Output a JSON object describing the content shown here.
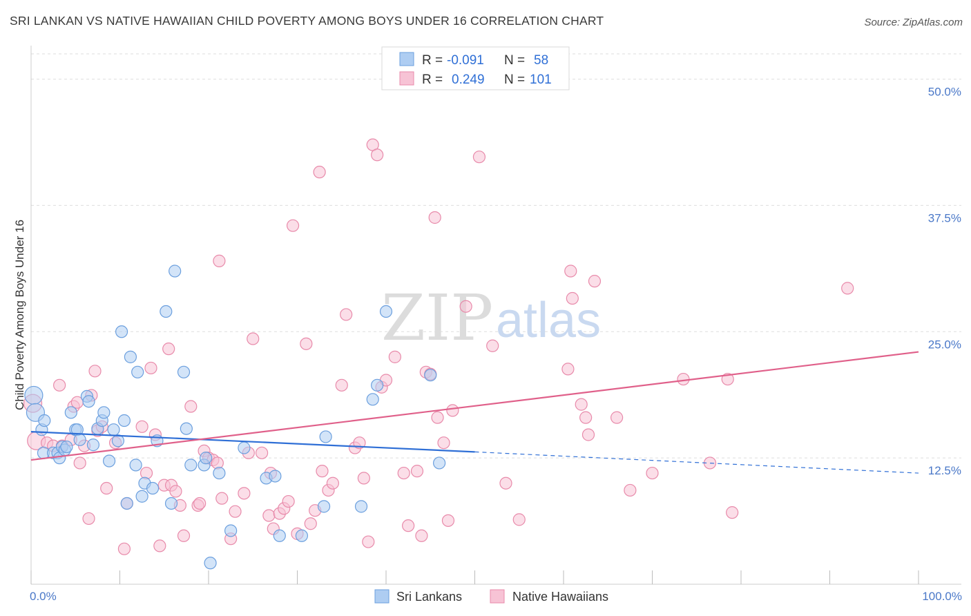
{
  "header": {
    "title": "SRI LANKAN VS NATIVE HAWAIIAN CHILD POVERTY AMONG BOYS UNDER 16 CORRELATION CHART",
    "source": "Source: ZipAtlas.com"
  },
  "watermark": {
    "zip": "ZIP",
    "atlas": "atlas"
  },
  "legend": {
    "rows": [
      {
        "r_label": "R =",
        "r_value": "-0.091",
        "n_label": "N =",
        "n_value": "58"
      },
      {
        "r_label": "R =",
        "r_value": "0.249",
        "n_label": "N =",
        "n_value": "101"
      }
    ]
  },
  "colors": {
    "sri_fill": "#aecdf2",
    "sri_stroke": "#6b9fde",
    "sri_line": "#2f6fd6",
    "haw_fill": "#f7c3d5",
    "haw_stroke": "#e88aaa",
    "haw_line": "#e0608a",
    "grid": "#dddddd",
    "tick_text": "#4a78c8"
  },
  "chart_data": {
    "type": "scatter",
    "title": "SRI LANKAN VS NATIVE HAWAIIAN CHILD POVERTY AMONG BOYS UNDER 16 CORRELATION CHART",
    "xlabel": "",
    "ylabel": "Child Poverty Among Boys Under 16",
    "xlim": [
      0,
      100
    ],
    "ylim": [
      0,
      52.5
    ],
    "x_tick_labels": [
      "0.0%",
      "100.0%"
    ],
    "y_ticks": [
      12.5,
      25.0,
      37.5,
      50.0
    ],
    "y_tick_labels": [
      "12.5%",
      "25.0%",
      "37.5%",
      "50.0%"
    ],
    "grid": true,
    "legend_position": "top-center",
    "series": [
      {
        "name": "Sri Lankans",
        "r": -0.091,
        "n": 58,
        "trend": {
          "x0": 0,
          "y0": 15.1,
          "x1": 50,
          "y1": 13.1,
          "dashed_to_x": 100,
          "dashed_to_y": 11.0
        },
        "points": [
          [
            0.3,
            18.7
          ],
          [
            0.5,
            17.0
          ],
          [
            1.2,
            15.3
          ],
          [
            1.5,
            16.2
          ],
          [
            1.4,
            13.0
          ],
          [
            2.5,
            13.0
          ],
          [
            3.0,
            13.0
          ],
          [
            3.2,
            12.5
          ],
          [
            3.5,
            13.6
          ],
          [
            3.8,
            13.3
          ],
          [
            4.0,
            13.6
          ],
          [
            4.5,
            17.0
          ],
          [
            5.0,
            15.3
          ],
          [
            5.2,
            15.3
          ],
          [
            5.5,
            14.3
          ],
          [
            6.3,
            18.6
          ],
          [
            6.5,
            18.1
          ],
          [
            7.0,
            13.8
          ],
          [
            7.5,
            15.4
          ],
          [
            8.0,
            16.2
          ],
          [
            8.2,
            17.0
          ],
          [
            8.8,
            12.2
          ],
          [
            9.3,
            15.3
          ],
          [
            9.8,
            14.2
          ],
          [
            10.2,
            25.0
          ],
          [
            10.5,
            16.2
          ],
          [
            10.8,
            8.0
          ],
          [
            11.2,
            22.5
          ],
          [
            11.8,
            11.8
          ],
          [
            12.0,
            21.0
          ],
          [
            12.5,
            8.7
          ],
          [
            12.8,
            10.0
          ],
          [
            13.7,
            9.5
          ],
          [
            14.2,
            14.2
          ],
          [
            15.2,
            27.0
          ],
          [
            15.8,
            8.0
          ],
          [
            16.2,
            31.0
          ],
          [
            17.2,
            21.0
          ],
          [
            17.5,
            15.4
          ],
          [
            18.0,
            11.8
          ],
          [
            19.5,
            11.8
          ],
          [
            19.7,
            12.5
          ],
          [
            20.2,
            2.1
          ],
          [
            21.2,
            11.0
          ],
          [
            22.5,
            5.3
          ],
          [
            24.0,
            13.5
          ],
          [
            26.5,
            10.5
          ],
          [
            27.5,
            10.7
          ],
          [
            28.0,
            4.8
          ],
          [
            30.5,
            4.8
          ],
          [
            33.0,
            7.7
          ],
          [
            33.2,
            14.6
          ],
          [
            37.2,
            7.7
          ],
          [
            38.5,
            18.3
          ],
          [
            39.0,
            19.7
          ],
          [
            40.0,
            27.0
          ],
          [
            45.0,
            20.7
          ],
          [
            46.0,
            12.0
          ]
        ]
      },
      {
        "name": "Native Hawaiians",
        "r": 0.249,
        "n": 101,
        "trend": {
          "x0": 0,
          "y0": 12.3,
          "x1": 100,
          "y1": 23.0
        },
        "points": [
          [
            0.2,
            17.9
          ],
          [
            0.6,
            14.2
          ],
          [
            1.8,
            14.0
          ],
          [
            2.5,
            13.7
          ],
          [
            3.2,
            19.7
          ],
          [
            3.5,
            13.7
          ],
          [
            4.5,
            14.3
          ],
          [
            4.8,
            17.6
          ],
          [
            5.2,
            18.0
          ],
          [
            5.5,
            12.0
          ],
          [
            6.0,
            13.7
          ],
          [
            6.5,
            6.5
          ],
          [
            6.8,
            18.7
          ],
          [
            7.2,
            21.1
          ],
          [
            7.5,
            15.2
          ],
          [
            8.0,
            15.6
          ],
          [
            8.5,
            9.5
          ],
          [
            9.5,
            14.0
          ],
          [
            10.5,
            3.5
          ],
          [
            10.8,
            8.0
          ],
          [
            12.5,
            15.6
          ],
          [
            13.0,
            11.0
          ],
          [
            13.5,
            21.4
          ],
          [
            14.0,
            14.8
          ],
          [
            14.5,
            3.8
          ],
          [
            15.0,
            9.8
          ],
          [
            15.5,
            23.3
          ],
          [
            15.8,
            9.8
          ],
          [
            16.3,
            9.2
          ],
          [
            16.8,
            7.8
          ],
          [
            17.2,
            4.8
          ],
          [
            18.0,
            17.6
          ],
          [
            18.8,
            7.8
          ],
          [
            19.0,
            8.0
          ],
          [
            19.5,
            13.2
          ],
          [
            20.0,
            12.5
          ],
          [
            20.5,
            12.3
          ],
          [
            21.0,
            12.0
          ],
          [
            21.2,
            32.0
          ],
          [
            21.5,
            8.5
          ],
          [
            22.5,
            4.5
          ],
          [
            23.0,
            7.2
          ],
          [
            24.0,
            9.0
          ],
          [
            24.5,
            13.0
          ],
          [
            25.0,
            24.3
          ],
          [
            26.0,
            13.0
          ],
          [
            26.8,
            6.8
          ],
          [
            27.0,
            11.0
          ],
          [
            27.3,
            5.5
          ],
          [
            28.0,
            7.0
          ],
          [
            28.5,
            7.5
          ],
          [
            29.0,
            8.2
          ],
          [
            29.5,
            35.5
          ],
          [
            30.0,
            5.0
          ],
          [
            31.0,
            23.8
          ],
          [
            31.5,
            6.0
          ],
          [
            32.0,
            7.3
          ],
          [
            32.5,
            40.8
          ],
          [
            32.8,
            11.2
          ],
          [
            33.5,
            9.3
          ],
          [
            34.0,
            10.0
          ],
          [
            35.0,
            19.7
          ],
          [
            35.5,
            26.7
          ],
          [
            36.5,
            13.5
          ],
          [
            37.0,
            14.0
          ],
          [
            37.5,
            10.5
          ],
          [
            38.0,
            4.2
          ],
          [
            38.5,
            43.5
          ],
          [
            39.0,
            42.5
          ],
          [
            39.5,
            19.5
          ],
          [
            40.0,
            20.2
          ],
          [
            41.0,
            22.5
          ],
          [
            42.0,
            11.0
          ],
          [
            42.5,
            5.8
          ],
          [
            43.5,
            11.2
          ],
          [
            44.0,
            4.8
          ],
          [
            44.5,
            21.0
          ],
          [
            45.0,
            20.8
          ],
          [
            45.5,
            36.3
          ],
          [
            45.8,
            16.5
          ],
          [
            46.5,
            14.0
          ],
          [
            47.0,
            6.3
          ],
          [
            47.5,
            17.2
          ],
          [
            49.0,
            27.5
          ],
          [
            50.5,
            42.3
          ],
          [
            52.0,
            23.6
          ],
          [
            53.5,
            10.0
          ],
          [
            55.0,
            6.4
          ],
          [
            60.5,
            21.3
          ],
          [
            60.8,
            31.0
          ],
          [
            61.0,
            28.3
          ],
          [
            62.0,
            17.8
          ],
          [
            62.5,
            16.5
          ],
          [
            63.5,
            30.0
          ],
          [
            66.0,
            16.5
          ],
          [
            67.5,
            9.3
          ],
          [
            70.0,
            11.0
          ],
          [
            73.5,
            20.3
          ],
          [
            76.5,
            12.0
          ],
          [
            78.5,
            20.3
          ],
          [
            79.0,
            7.1
          ],
          [
            92.0,
            29.3
          ],
          [
            62.8,
            14.8
          ]
        ]
      }
    ],
    "bottom_legend": [
      "Sri Lankans",
      "Native Hawaiians"
    ]
  }
}
